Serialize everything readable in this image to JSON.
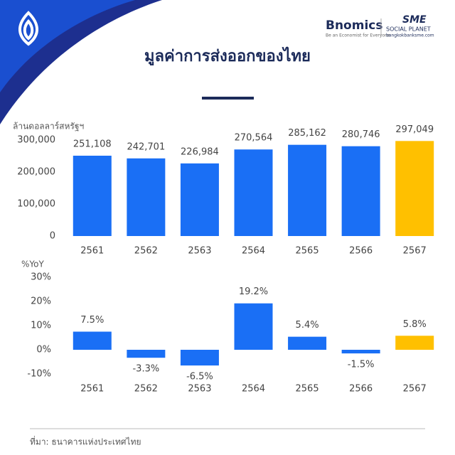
{
  "header": {
    "title": "มูลค่าการส่งออกของไทย",
    "brand": "Bnomics",
    "brand_tagline": "Be an Economist for Everyone",
    "partner": "SME",
    "partner_sub": "SOCIAL PLANET",
    "partner_url": "bangkokbanksme.com"
  },
  "source": "ที่มา: ธนาคารแห่งประเทศไทย",
  "chart_data": [
    {
      "type": "bar",
      "y_label": "ล้านดอลลาร์สหรัฐฯ",
      "categories": [
        "2561",
        "2562",
        "2563",
        "2564",
        "2565",
        "2566",
        "2567"
      ],
      "values": [
        251108,
        242701,
        226984,
        270564,
        285162,
        280746,
        297049
      ],
      "value_labels": [
        "251,108",
        "242,701",
        "226,984",
        "270,564",
        "285,162",
        "280,746",
        "297,049"
      ],
      "colors": [
        "#1a6ff5",
        "#1a6ff5",
        "#1a6ff5",
        "#1a6ff5",
        "#1a6ff5",
        "#1a6ff5",
        "#ffc000"
      ],
      "ylim": [
        0,
        300000
      ],
      "yticks": [
        0,
        {
          "value": 100000,
          "label": "100,000"
        },
        {
          "value": 200000,
          "label": "200,000"
        },
        {
          "value": 300000,
          "label": "300,000"
        }
      ],
      "grid": false
    },
    {
      "type": "bar",
      "y_label": "%YoY",
      "categories": [
        "2561",
        "2562",
        "2563",
        "2564",
        "2565",
        "2566",
        "2567"
      ],
      "values": [
        7.5,
        -3.3,
        -6.5,
        19.2,
        5.4,
        -1.5,
        5.8
      ],
      "value_labels": [
        "7.5%",
        "-3.3%",
        "-6.5%",
        "19.2%",
        "5.4%",
        "-1.5%",
        "5.8%"
      ],
      "colors": [
        "#1a6ff5",
        "#1a6ff5",
        "#1a6ff5",
        "#1a6ff5",
        "#1a6ff5",
        "#1a6ff5",
        "#ffc000"
      ],
      "ylim": [
        -10,
        30
      ],
      "yticks": [
        {
          "value": -10,
          "label": "-10%"
        },
        {
          "value": 0,
          "label": "0%"
        },
        {
          "value": 10,
          "label": "10%"
        },
        {
          "value": 20,
          "label": "20%"
        },
        {
          "value": 30,
          "label": "30%"
        }
      ],
      "grid": false
    }
  ]
}
